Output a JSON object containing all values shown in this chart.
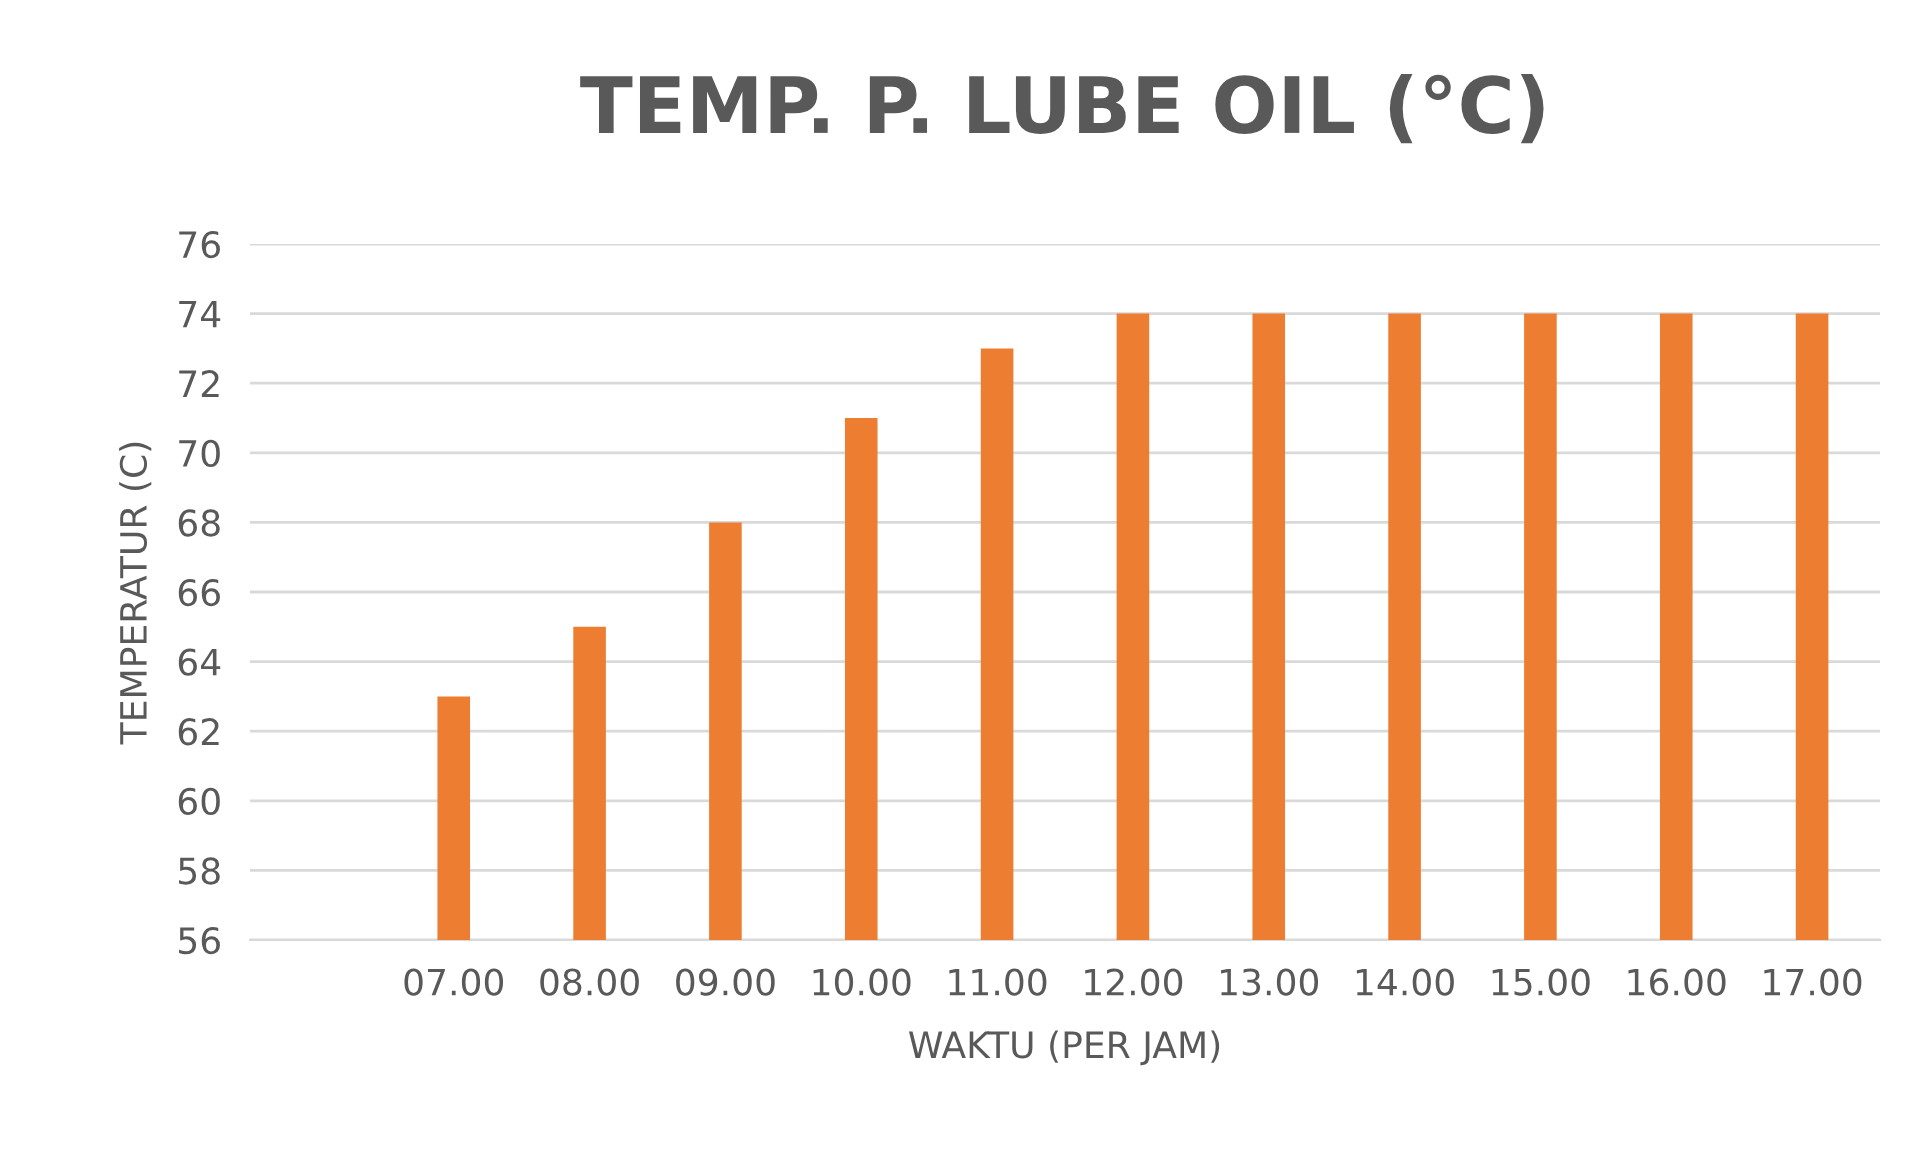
{
  "chart_data": {
    "type": "bar",
    "title": "TEMP. P. LUBE OIL (°C)",
    "xlabel": "WAKTU (PER JAM)",
    "ylabel": "TEMPERATUR (C)",
    "categories": [
      null,
      "07.00",
      "08.00",
      "09.00",
      "10.00",
      "11.00",
      "12.00",
      "13.00",
      "14.00",
      "15.00",
      "16.00",
      "17.00"
    ],
    "values": [
      null,
      63,
      65,
      68,
      71,
      73,
      74,
      74,
      74,
      74,
      74,
      74
    ],
    "color": "#ed7d31",
    "ylim": [
      56,
      76
    ],
    "yticks": [
      56,
      58,
      60,
      62,
      64,
      66,
      68,
      70,
      72,
      74,
      76
    ],
    "grid": "y",
    "legend": false
  }
}
